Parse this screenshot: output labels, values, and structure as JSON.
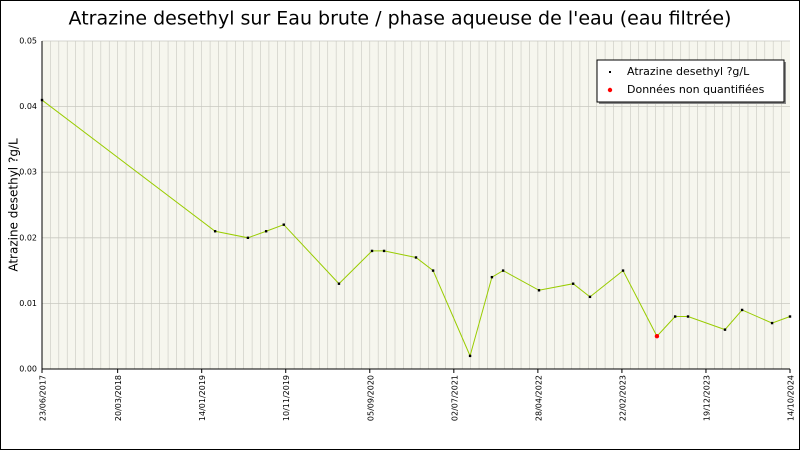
{
  "chart_data": {
    "type": "line",
    "title": "Atrazine desethyl sur Eau brute / phase aqueuse de l'eau (eau filtrée)",
    "y_label": "Atrazine desethyl ?g/L",
    "x": [
      "2017-06-23",
      "2019-03-03",
      "2019-06-28",
      "2019-09-01",
      "2019-11-03",
      "2020-05-18",
      "2020-09-13",
      "2020-10-26",
      "2021-02-17",
      "2021-04-19",
      "2021-08-29",
      "2021-11-15",
      "2021-12-25",
      "2022-05-02",
      "2022-09-01",
      "2022-10-31",
      "2023-02-26",
      "2023-06-27",
      "2023-08-31",
      "2023-10-16",
      "2024-02-25",
      "2024-04-26",
      "2024-08-11",
      "2024-10-14"
    ],
    "series": [
      {
        "name": "Atrazine desethyl ?g/L",
        "color": "#99cc00",
        "marker_color": "#000000",
        "values": [
          0.041,
          0.021,
          0.02,
          0.021,
          0.022,
          0.013,
          0.018,
          0.018,
          0.017,
          0.015,
          0.002,
          0.014,
          0.015,
          0.012,
          0.013,
          0.011,
          0.015,
          0.005,
          0.008,
          0.008,
          0.006,
          0.009,
          0.007,
          0.008
        ]
      },
      {
        "name": "Données non quantifiées",
        "color": "#ff0000",
        "values": [
          null,
          null,
          null,
          null,
          null,
          null,
          null,
          null,
          null,
          null,
          null,
          null,
          null,
          null,
          null,
          null,
          null,
          0.005,
          null,
          null,
          null,
          null,
          null,
          null
        ]
      }
    ],
    "xlim": [
      "2017-06-23",
      "2024-10-14"
    ],
    "xticks": [
      {
        "value": "2017-06-23",
        "label": "23/06/2017"
      },
      {
        "value": "2018-03-20",
        "label": "20/03/2018"
      },
      {
        "value": "2019-01-14",
        "label": "14/01/2019"
      },
      {
        "value": "2019-11-10",
        "label": "10/11/2019"
      },
      {
        "value": "2020-09-05",
        "label": "05/09/2020"
      },
      {
        "value": "2021-07-02",
        "label": "02/07/2021"
      },
      {
        "value": "2022-04-28",
        "label": "28/04/2022"
      },
      {
        "value": "2023-02-22",
        "label": "22/02/2023"
      },
      {
        "value": "2023-12-19",
        "label": "19/12/2023"
      },
      {
        "value": "2024-10-14",
        "label": "14/10/2024"
      }
    ],
    "ylim": [
      0,
      0.05
    ],
    "yticks": [
      {
        "value": 0,
        "label": "0.00"
      },
      0.01,
      0.02,
      0.03,
      0.04,
      0.05
    ],
    "grid": true,
    "legend": "upper right"
  }
}
